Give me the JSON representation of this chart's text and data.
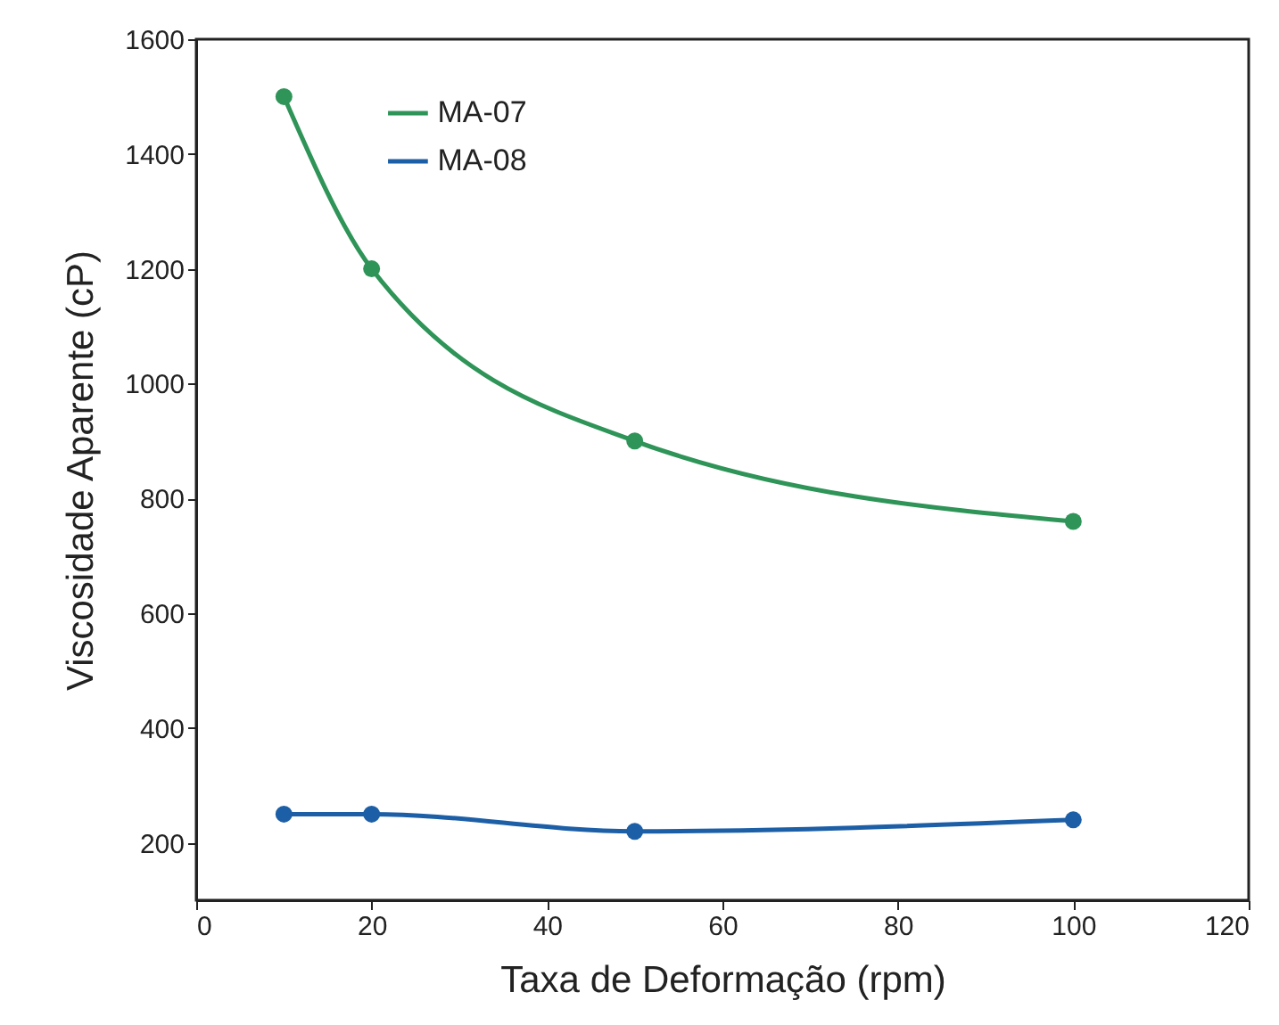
{
  "chart_data": {
    "type": "line",
    "xlabel": "Taxa de Deformação (rpm)",
    "ylabel": "Viscosidade Aparente (cP)",
    "x": [
      10,
      20,
      50,
      100
    ],
    "series": [
      {
        "name": "MA-07",
        "color": "#2e9457",
        "values": [
          1500,
          1200,
          900,
          760
        ]
      },
      {
        "name": "MA-08",
        "color": "#1d5fa6",
        "values": [
          250,
          250,
          220,
          240
        ]
      }
    ],
    "xlim": [
      0,
      120
    ],
    "xticks": [
      0,
      20,
      40,
      60,
      80,
      100,
      120
    ],
    "ylim": [
      100,
      1600
    ],
    "yticks": [
      200,
      400,
      600,
      800,
      1000,
      1200,
      1400,
      1600
    ],
    "grid": false,
    "legend": "top",
    "marker": "circle",
    "line_style": "solid"
  }
}
